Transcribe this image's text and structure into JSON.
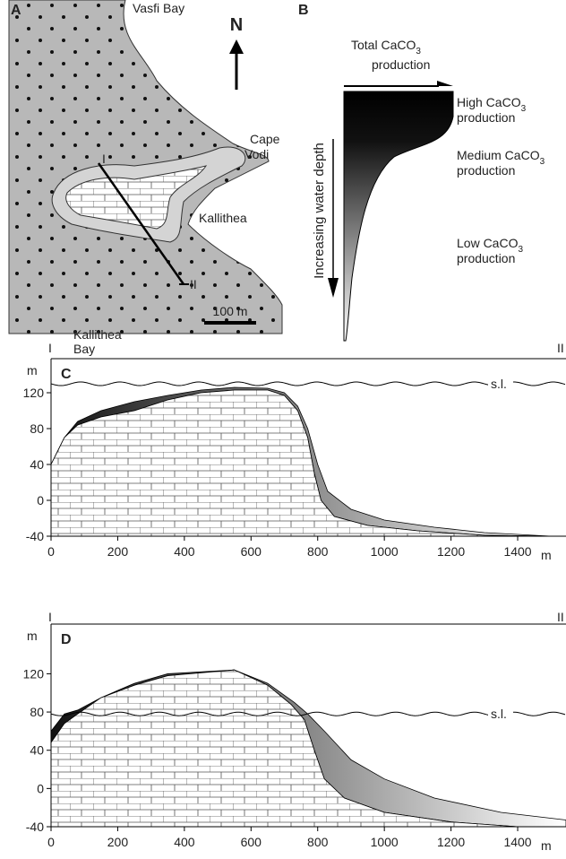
{
  "panel_a": {
    "label": "A",
    "vasfi_bay": "Vasfi Bay",
    "north": "N",
    "cape_vodi": [
      "Cape",
      "Vodi"
    ],
    "kallithea": "Kallithea",
    "section_start": "I",
    "section_end": "II",
    "kallithea_bay": [
      "Kallithea",
      "Bay"
    ],
    "scale_bar": "100 m"
  },
  "panel_b": {
    "label": "B",
    "total": [
      "Total CaCO",
      "3",
      "production"
    ],
    "high": [
      "High CaCO",
      "3",
      "production"
    ],
    "medium": [
      "Medium CaCO",
      "3",
      "production"
    ],
    "low": [
      "Low CaCO",
      "3",
      "production"
    ],
    "depth_axis": "Increasing water depth"
  },
  "profiles": [
    {
      "label": "C",
      "section_start": "I",
      "section_end": "II",
      "y_unit": "m",
      "x_unit": "m",
      "sea_level": "s.l.",
      "xlim": [
        0,
        1545
      ],
      "ylim": [
        -40,
        158
      ],
      "xticks": [
        0,
        200,
        400,
        600,
        800,
        1000,
        1200,
        1400
      ],
      "yticks": [
        -40,
        0,
        40,
        80,
        120
      ]
    },
    {
      "label": "D",
      "section_start": "I",
      "section_end": "II",
      "y_unit": "m",
      "x_unit": "m",
      "sea_level": "s.l.",
      "xlim": [
        0,
        1545
      ],
      "ylim": [
        -40,
        172
      ],
      "xticks": [
        0,
        200,
        400,
        600,
        800,
        1000,
        1200,
        1400
      ],
      "yticks": [
        -40,
        0,
        40,
        80,
        120
      ]
    }
  ]
}
